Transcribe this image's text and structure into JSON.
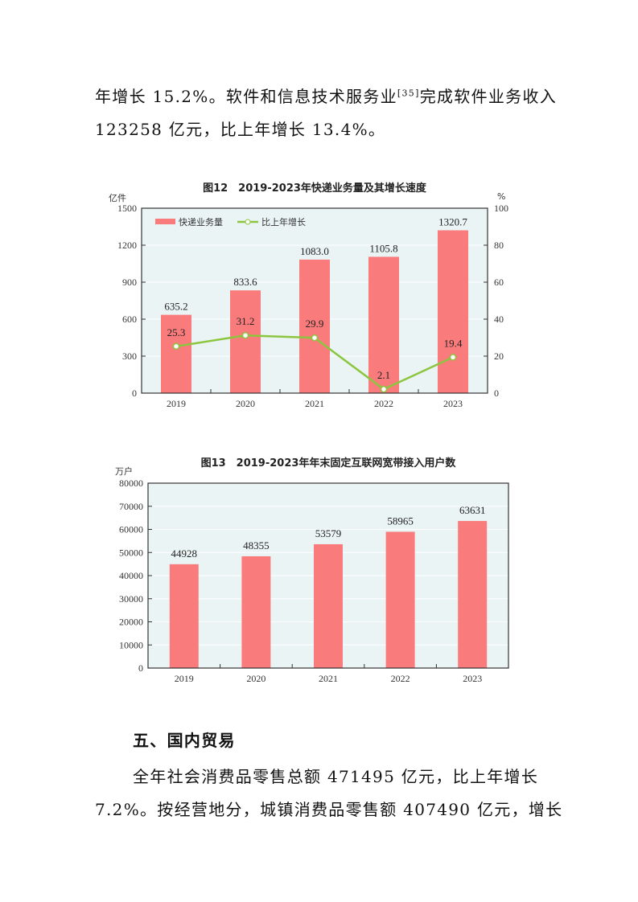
{
  "text": {
    "p1_line1_a": "年增长 15.2%。软件和信息技术服务业",
    "p1_note": "[35]",
    "p1_line1_b": "完成软件业务收入",
    "p1_line2": "123258 亿元，比上年增长 13.4%。",
    "heading": "五、国内贸易",
    "p2_line1": "全年社会消费品零售总额 471495 亿元，比上年增长",
    "p2_line2": "7.2%。按经营地分，城镇消费品零售额 407490 亿元，增长"
  },
  "colors": {
    "bar": "#f97b7b",
    "line": "#8cc63f",
    "plot_bg": "#eaf4f5"
  },
  "chart_data": [
    {
      "type": "bar+line",
      "title": "图12　2019-2023年快递业务量及其增长速度",
      "categories": [
        "2019",
        "2020",
        "2021",
        "2022",
        "2023"
      ],
      "ylabel": "亿件",
      "y2label": "%",
      "ylim": [
        0,
        1500
      ],
      "y2lim": [
        0,
        100
      ],
      "yticks": [
        "0",
        "300",
        "600",
        "900",
        "1200",
        "1500"
      ],
      "y2ticks": [
        "0",
        "20",
        "40",
        "60",
        "80",
        "100"
      ],
      "legend": "top-left",
      "series": [
        {
          "name": "快递业务量",
          "type": "bar",
          "values": [
            635.2,
            833.6,
            1083.0,
            1105.8,
            1320.7
          ],
          "labels": [
            "635.2",
            "833.6",
            "1083.0",
            "1105.8",
            "1320.7"
          ]
        },
        {
          "name": "比上年增长",
          "type": "line",
          "axis": "right",
          "values": [
            25.3,
            31.2,
            29.9,
            2.1,
            19.4
          ],
          "labels": [
            "25.3",
            "31.2",
            "29.9",
            "2.1",
            "19.4"
          ]
        }
      ]
    },
    {
      "type": "bar",
      "title": "图13　2019-2023年年末固定互联网宽带接入用户数",
      "categories": [
        "2019",
        "2020",
        "2021",
        "2022",
        "2023"
      ],
      "ylabel": "万户",
      "ylim": [
        0,
        80000
      ],
      "yticks": [
        "0",
        "10000",
        "20000",
        "30000",
        "40000",
        "50000",
        "60000",
        "70000",
        "80000"
      ],
      "values": [
        44928,
        48355,
        53579,
        58965,
        63631
      ],
      "labels": [
        "44928",
        "48355",
        "53579",
        "58965",
        "63631"
      ]
    }
  ]
}
